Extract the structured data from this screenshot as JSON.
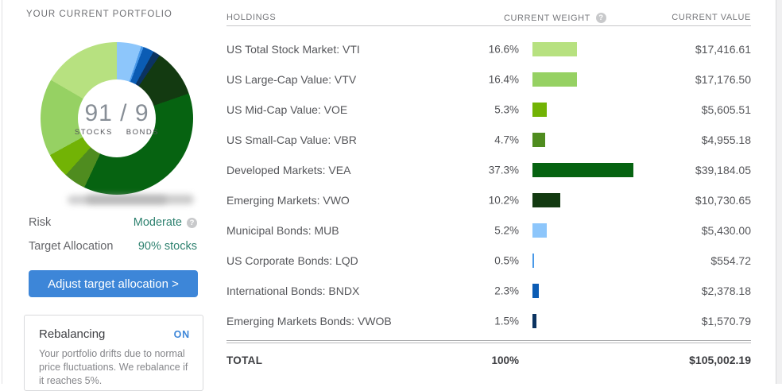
{
  "left_panel": {
    "title": "YOUR CURRENT PORTFOLIO",
    "donut_center": {
      "stocks_value": "91",
      "separator": "/",
      "bonds_value": "9",
      "stocks_label": "STOCKS",
      "bonds_label": "BONDS"
    },
    "risk": {
      "label": "Risk",
      "value": "Moderate"
    },
    "target_allocation": {
      "label": "Target Allocation",
      "value": "90% stocks"
    },
    "adjust_button_label": "Adjust target allocation >",
    "rebalancing": {
      "title": "Rebalancing",
      "status": "ON",
      "description": "Your portfolio drifts due to normal price fluctuations. We rebalance if it reaches 5%."
    }
  },
  "table": {
    "headers": {
      "holdings": "HOLDINGS",
      "weight": "CURRENT WEIGHT",
      "value": "CURRENT VALUE"
    },
    "total": {
      "label": "TOTAL",
      "weight": "100%",
      "value": "$105,002.19"
    }
  },
  "icons": {
    "help_glyph": "?"
  },
  "colors": {
    "accent_blue": "#3d86d8",
    "teal_value_text": "#2f8270",
    "header_gray": "#77787c",
    "row_text_gray": "#55565a"
  },
  "chart_data": {
    "type": "pie",
    "title": "Your current portfolio — 91 / 9 stocks to bonds donut with per-holding weight bars",
    "center_label": "91 / 9 STOCKS BONDS",
    "slices": [
      {
        "label": "US Total Stock Market: VTI",
        "weight_pct": 16.6,
        "value_usd": "$17,416.61",
        "color": "#b7e180"
      },
      {
        "label": "US Large-Cap Value: VTV",
        "weight_pct": 16.4,
        "value_usd": "$17,176.50",
        "color": "#96d163"
      },
      {
        "label": "US Mid-Cap Value: VOE",
        "weight_pct": 5.3,
        "value_usd": "$5,605.51",
        "color": "#72b305"
      },
      {
        "label": "US Small-Cap Value: VBR",
        "weight_pct": 4.7,
        "value_usd": "$4,955.18",
        "color": "#4f8c1f"
      },
      {
        "label": "Developed Markets: VEA",
        "weight_pct": 37.3,
        "value_usd": "$39,184.05",
        "color": "#066311"
      },
      {
        "label": "Emerging Markets: VWO",
        "weight_pct": 10.2,
        "value_usd": "$10,730.65",
        "color": "#133a11"
      },
      {
        "label": "Municipal Bonds: MUB",
        "weight_pct": 5.2,
        "value_usd": "$5,430.00",
        "color": "#8dc6fb"
      },
      {
        "label": "US Corporate Bonds: LQD",
        "weight_pct": 0.5,
        "value_usd": "$554.72",
        "color": "#4a99e8"
      },
      {
        "label": "International Bonds: BNDX",
        "weight_pct": 2.3,
        "value_usd": "$2,378.18",
        "color": "#0b5cb4"
      },
      {
        "label": "Emerging Markets Bonds: VWOB",
        "weight_pct": 1.5,
        "value_usd": "$1,570.79",
        "color": "#0b3361"
      }
    ],
    "donut_order_clockwise_from_top": [
      "Municipal Bonds: MUB",
      "US Corporate Bonds: LQD",
      "International Bonds: BNDX",
      "Emerging Markets Bonds: VWOB",
      "Emerging Markets: VWO",
      "Developed Markets: VEA",
      "US Small-Cap Value: VBR",
      "US Mid-Cap Value: VOE",
      "US Large-Cap Value: VTV",
      "US Total Stock Market: VTI"
    ],
    "total": {
      "weight_pct": 100,
      "value_usd": "$105,002.19"
    }
  }
}
